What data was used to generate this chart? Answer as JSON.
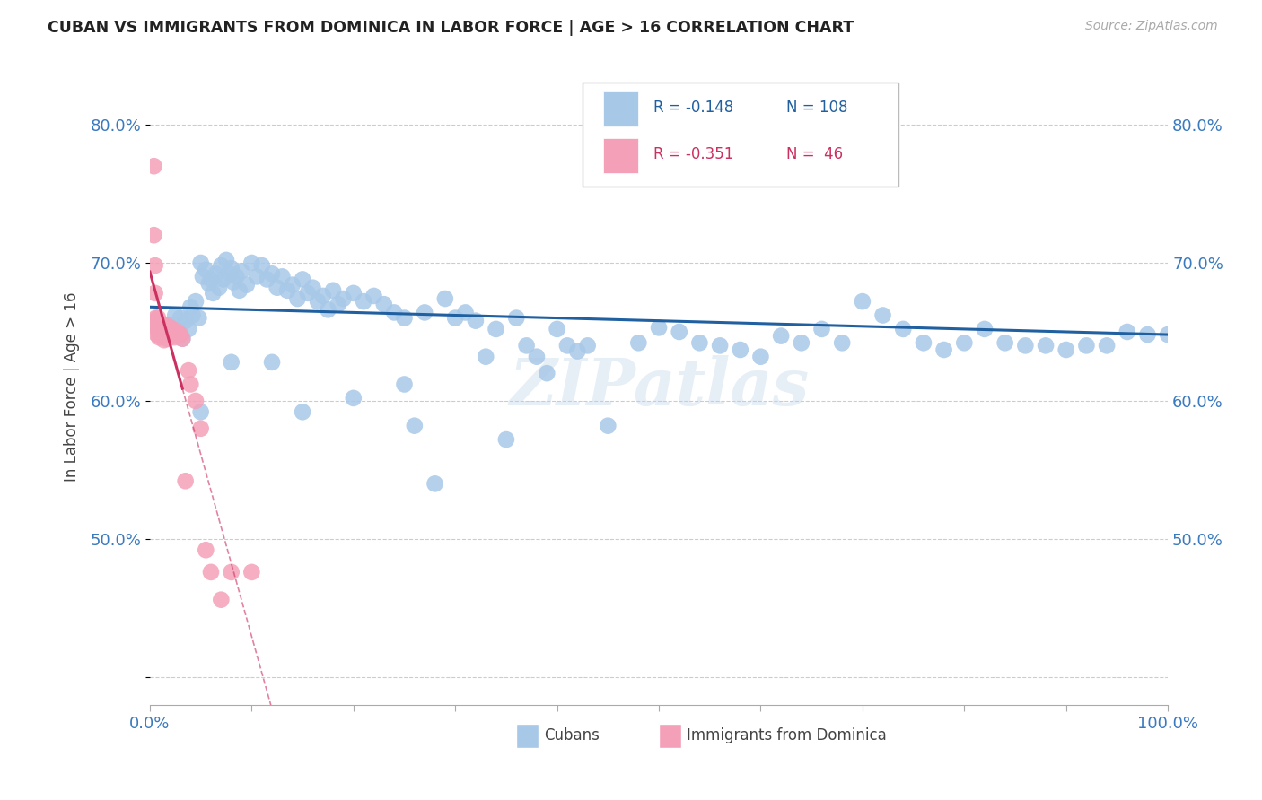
{
  "title": "CUBAN VS IMMIGRANTS FROM DOMINICA IN LABOR FORCE | AGE > 16 CORRELATION CHART",
  "source": "Source: ZipAtlas.com",
  "ylabel_label": "In Labor Force | Age > 16",
  "xlim": [
    0.0,
    1.0
  ],
  "ylim": [
    0.38,
    0.84
  ],
  "y_ticks": [
    0.4,
    0.5,
    0.6,
    0.7,
    0.8
  ],
  "y_tick_labels": [
    "",
    "50.0%",
    "60.0%",
    "70.0%",
    "80.0%"
  ],
  "x_ticks": [
    0.0,
    0.1,
    0.2,
    0.3,
    0.4,
    0.5,
    0.6,
    0.7,
    0.8,
    0.9,
    1.0
  ],
  "legend_r1": "R = -0.148",
  "legend_n1": "N = 108",
  "legend_r2": "R = -0.351",
  "legend_n2": "N =  46",
  "color_cubans": "#a8c8e8",
  "color_dominica": "#f4a0b8",
  "color_trend_cubans": "#2060a0",
  "color_trend_dominica": "#cc3060",
  "watermark": "ZIPatlas",
  "legend_label1": "Cubans",
  "legend_label2": "Immigrants from Dominica",
  "cubans_x": [
    0.018,
    0.022,
    0.025,
    0.028,
    0.03,
    0.032,
    0.035,
    0.038,
    0.04,
    0.042,
    0.045,
    0.048,
    0.05,
    0.052,
    0.055,
    0.058,
    0.06,
    0.062,
    0.065,
    0.068,
    0.07,
    0.072,
    0.075,
    0.078,
    0.08,
    0.082,
    0.085,
    0.088,
    0.09,
    0.095,
    0.1,
    0.105,
    0.11,
    0.115,
    0.12,
    0.125,
    0.13,
    0.135,
    0.14,
    0.145,
    0.15,
    0.155,
    0.16,
    0.165,
    0.17,
    0.175,
    0.18,
    0.185,
    0.19,
    0.2,
    0.21,
    0.22,
    0.23,
    0.24,
    0.25,
    0.26,
    0.27,
    0.28,
    0.29,
    0.3,
    0.31,
    0.32,
    0.33,
    0.34,
    0.35,
    0.36,
    0.37,
    0.38,
    0.39,
    0.4,
    0.41,
    0.42,
    0.43,
    0.45,
    0.48,
    0.5,
    0.52,
    0.54,
    0.56,
    0.58,
    0.6,
    0.62,
    0.64,
    0.66,
    0.68,
    0.7,
    0.72,
    0.74,
    0.76,
    0.78,
    0.8,
    0.82,
    0.84,
    0.86,
    0.88,
    0.9,
    0.92,
    0.94,
    0.96,
    0.98,
    1.0,
    0.5,
    0.25,
    0.15,
    0.05,
    0.08,
    0.12,
    0.2
  ],
  "cubans_y": [
    0.655,
    0.65,
    0.662,
    0.648,
    0.66,
    0.645,
    0.658,
    0.652,
    0.668,
    0.662,
    0.672,
    0.66,
    0.7,
    0.69,
    0.695,
    0.685,
    0.688,
    0.678,
    0.692,
    0.682,
    0.698,
    0.688,
    0.702,
    0.692,
    0.696,
    0.686,
    0.69,
    0.68,
    0.694,
    0.684,
    0.7,
    0.69,
    0.698,
    0.688,
    0.692,
    0.682,
    0.69,
    0.68,
    0.684,
    0.674,
    0.688,
    0.678,
    0.682,
    0.672,
    0.676,
    0.666,
    0.68,
    0.67,
    0.674,
    0.678,
    0.672,
    0.676,
    0.67,
    0.664,
    0.66,
    0.582,
    0.664,
    0.54,
    0.674,
    0.66,
    0.664,
    0.658,
    0.632,
    0.652,
    0.572,
    0.66,
    0.64,
    0.632,
    0.62,
    0.652,
    0.64,
    0.636,
    0.64,
    0.582,
    0.642,
    0.653,
    0.65,
    0.642,
    0.64,
    0.637,
    0.632,
    0.647,
    0.642,
    0.652,
    0.642,
    0.672,
    0.662,
    0.652,
    0.642,
    0.637,
    0.642,
    0.652,
    0.642,
    0.64,
    0.64,
    0.637,
    0.64,
    0.64,
    0.65,
    0.648,
    0.648,
    0.762,
    0.612,
    0.592,
    0.592,
    0.628,
    0.628,
    0.602
  ],
  "dominica_x": [
    0.004,
    0.004,
    0.005,
    0.005,
    0.005,
    0.006,
    0.006,
    0.007,
    0.007,
    0.008,
    0.008,
    0.009,
    0.009,
    0.01,
    0.01,
    0.011,
    0.012,
    0.012,
    0.013,
    0.014,
    0.015,
    0.015,
    0.016,
    0.017,
    0.018,
    0.019,
    0.02,
    0.021,
    0.022,
    0.023,
    0.024,
    0.025,
    0.027,
    0.028,
    0.03,
    0.032,
    0.035,
    0.038,
    0.04,
    0.045,
    0.05,
    0.055,
    0.06,
    0.07,
    0.08,
    0.1
  ],
  "dominica_y": [
    0.77,
    0.72,
    0.698,
    0.678,
    0.658,
    0.66,
    0.655,
    0.652,
    0.648,
    0.66,
    0.655,
    0.65,
    0.646,
    0.656,
    0.652,
    0.648,
    0.655,
    0.651,
    0.648,
    0.644,
    0.655,
    0.651,
    0.648,
    0.645,
    0.652,
    0.649,
    0.653,
    0.649,
    0.648,
    0.647,
    0.646,
    0.651,
    0.648,
    0.649,
    0.648,
    0.645,
    0.542,
    0.622,
    0.612,
    0.6,
    0.58,
    0.492,
    0.476,
    0.456,
    0.476,
    0.476
  ],
  "cubans_trend": [
    -0.148,
    0.0
  ],
  "dominica_trend": [
    -0.351,
    0.0
  ],
  "trend_cubans_start_x": 0.0,
  "trend_cubans_end_x": 1.0,
  "trend_cubans_start_y": 0.668,
  "trend_cubans_end_y": 0.648,
  "trend_dominica_solid_start_x": 0.0,
  "trend_dominica_solid_end_x": 0.032,
  "trend_dominica_dash_start_x": 0.032,
  "trend_dominica_dash_end_x": 0.18,
  "trend_dominica_start_y": 0.668,
  "trend_dominica_end_y": 0.42
}
